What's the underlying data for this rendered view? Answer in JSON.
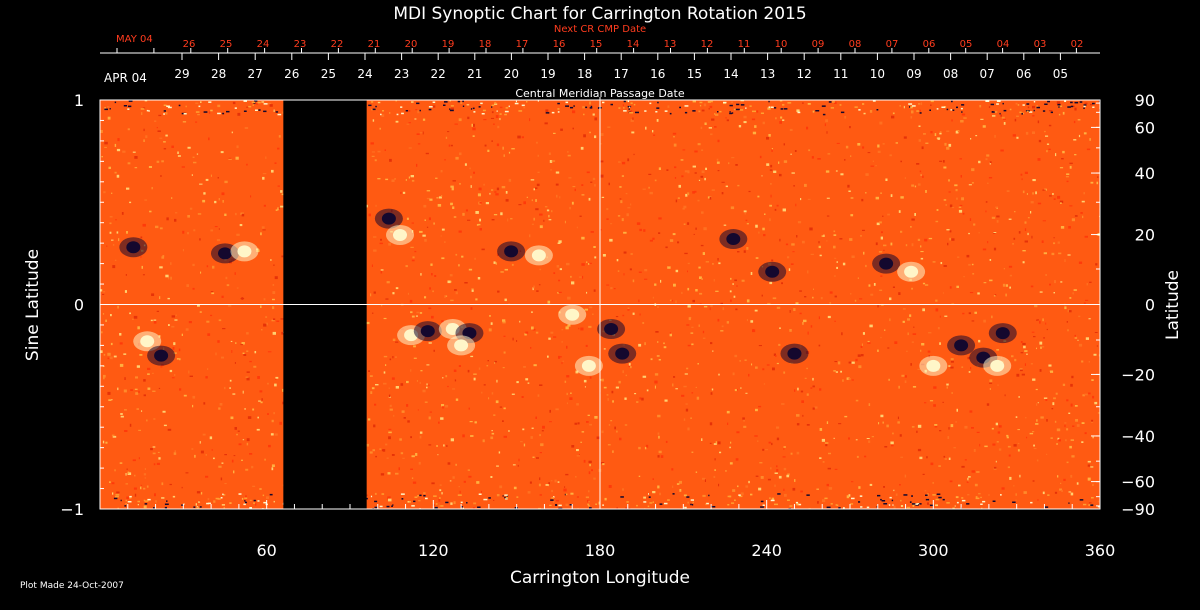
{
  "chart_data": {
    "type": "heatmap",
    "title": "MDI Synoptic Chart for Carrington Rotation 2015",
    "xlabel": "Carrington Longitude",
    "ylabel_left": "Sine Latitude",
    "ylabel_right": "Latitude",
    "xlim": [
      0,
      360
    ],
    "ylim": [
      -1,
      1
    ],
    "x_ticks": [
      "60",
      "120",
      "180",
      "240",
      "300",
      "360"
    ],
    "y_ticks_left": [
      "1",
      "0",
      "−1"
    ],
    "y_ticks_right": [
      "90",
      "60",
      "40",
      "20",
      "0",
      "−20",
      "−40",
      "−60",
      "−90"
    ],
    "y_ticks_right_deg": [
      90,
      60,
      40,
      20,
      0,
      -20,
      -40,
      -60,
      -90
    ],
    "top_axis_next": {
      "label": "Next CR CMP Date",
      "month_label": "MAY 04",
      "days": [
        "26",
        "25",
        "24",
        "23",
        "22",
        "21",
        "20",
        "19",
        "18",
        "17",
        "16",
        "15",
        "14",
        "13",
        "12",
        "11",
        "10",
        "09",
        "08",
        "07",
        "06",
        "05",
        "04",
        "03",
        "02"
      ]
    },
    "top_axis_cmp": {
      "label": "Central Meridian Passage Date",
      "month_label": "APR 04",
      "days": [
        "29",
        "28",
        "27",
        "26",
        "25",
        "24",
        "23",
        "22",
        "21",
        "20",
        "19",
        "18",
        "17",
        "16",
        "15",
        "14",
        "13",
        "12",
        "11",
        "10",
        "09",
        "08",
        "07",
        "06",
        "05"
      ]
    },
    "data_gap_longitude": [
      66,
      96
    ],
    "central_meridian_longitude": 180,
    "colors": {
      "background": "#000000",
      "field_base": "#ff5a12",
      "field_positive": "#fff6c8",
      "field_negative": "#14082e",
      "axis": "#ffffff",
      "next_cr_text": "#ff3c1e"
    },
    "features": [
      {
        "polarity": "positive",
        "longitude": 17,
        "sin_latitude": -0.18
      },
      {
        "polarity": "negative",
        "longitude": 22,
        "sin_latitude": -0.25
      },
      {
        "polarity": "negative",
        "longitude": 12,
        "sin_latitude": 0.28
      },
      {
        "polarity": "negative",
        "longitude": 45,
        "sin_latitude": 0.25
      },
      {
        "polarity": "positive",
        "longitude": 52,
        "sin_latitude": 0.26
      },
      {
        "polarity": "negative",
        "longitude": 104,
        "sin_latitude": 0.42
      },
      {
        "polarity": "positive",
        "longitude": 108,
        "sin_latitude": 0.34
      },
      {
        "polarity": "positive",
        "longitude": 112,
        "sin_latitude": -0.15
      },
      {
        "polarity": "negative",
        "longitude": 118,
        "sin_latitude": -0.13
      },
      {
        "polarity": "positive",
        "longitude": 127,
        "sin_latitude": -0.12
      },
      {
        "polarity": "negative",
        "longitude": 133,
        "sin_latitude": -0.14
      },
      {
        "polarity": "positive",
        "longitude": 130,
        "sin_latitude": -0.2
      },
      {
        "polarity": "negative",
        "longitude": 148,
        "sin_latitude": 0.26
      },
      {
        "polarity": "positive",
        "longitude": 158,
        "sin_latitude": 0.24
      },
      {
        "polarity": "positive",
        "longitude": 170,
        "sin_latitude": -0.05
      },
      {
        "polarity": "negative",
        "longitude": 184,
        "sin_latitude": -0.12
      },
      {
        "polarity": "negative",
        "longitude": 188,
        "sin_latitude": -0.24
      },
      {
        "polarity": "positive",
        "longitude": 176,
        "sin_latitude": -0.3
      },
      {
        "polarity": "negative",
        "longitude": 228,
        "sin_latitude": 0.32
      },
      {
        "polarity": "negative",
        "longitude": 242,
        "sin_latitude": 0.16
      },
      {
        "polarity": "negative",
        "longitude": 283,
        "sin_latitude": 0.2
      },
      {
        "polarity": "positive",
        "longitude": 292,
        "sin_latitude": 0.16
      },
      {
        "polarity": "positive",
        "longitude": 300,
        "sin_latitude": -0.3
      },
      {
        "polarity": "negative",
        "longitude": 310,
        "sin_latitude": -0.2
      },
      {
        "polarity": "negative",
        "longitude": 318,
        "sin_latitude": -0.26
      },
      {
        "polarity": "positive",
        "longitude": 323,
        "sin_latitude": -0.3
      },
      {
        "polarity": "negative",
        "longitude": 325,
        "sin_latitude": -0.14
      },
      {
        "polarity": "negative",
        "longitude": 250,
        "sin_latitude": -0.24
      }
    ]
  },
  "footer": {
    "plot_made": "Plot Made 24-Oct-2007"
  }
}
